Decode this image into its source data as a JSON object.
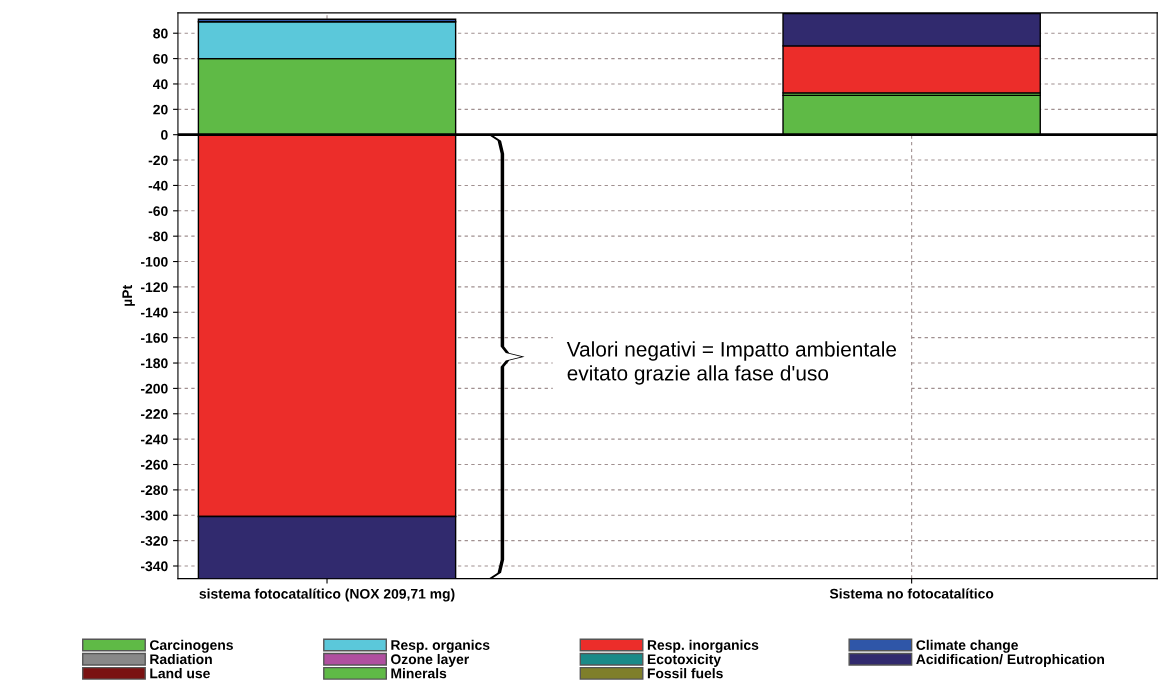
{
  "chart_data": {
    "type": "bar",
    "stacked": true,
    "categories": [
      "sistema fotocatalítico (NOX 209,71 mg)",
      "Sistema no fotocatalítico"
    ],
    "ylabel": "µPt",
    "series": [
      {
        "name": "Carcinogens",
        "color": "#5fba46",
        "values": [
          60,
          31
        ]
      },
      {
        "name": "Radiation",
        "color": "#888888",
        "values": [
          null,
          null
        ]
      },
      {
        "name": "Land use",
        "color": "#7a1212",
        "values": [
          null,
          null
        ]
      },
      {
        "name": "Resp. organics",
        "color": "#5bc8da",
        "values": [
          29,
          null
        ]
      },
      {
        "name": "Ozone layer",
        "color": "#b04fa0",
        "values": [
          null,
          null
        ]
      },
      {
        "name": "Minerals",
        "color": "#5fba46",
        "values": [
          null,
          2
        ]
      },
      {
        "name": "Resp. inorganics",
        "color": "#ec2d2a",
        "values": [
          -301,
          37
        ]
      },
      {
        "name": "Ecotoxicity",
        "color": "#1a8a88",
        "values": [
          null,
          null
        ]
      },
      {
        "name": "Fossil fuels",
        "color": "#7f7f2a",
        "values": [
          null,
          null
        ]
      },
      {
        "name": "Climate change",
        "color": "#2f56a8",
        "values": [
          2,
          null
        ]
      },
      {
        "name": "Acidification/ Eutrophication",
        "color": "#312a6e",
        "values": [
          -49,
          25.5
        ]
      }
    ],
    "ylim": [
      -350,
      96
    ],
    "yticks": [
      80,
      60,
      40,
      20,
      0,
      -20,
      -40,
      -60,
      -80,
      -100,
      -120,
      -140,
      -160,
      -180,
      -200,
      -220,
      -240,
      -260,
      -280,
      -300,
      -320,
      -340
    ],
    "grid": true,
    "legend": "bottom",
    "annotations": [
      "Valori negativi = Impatto ambientale evitato grazie alla fase d'uso"
    ]
  }
}
